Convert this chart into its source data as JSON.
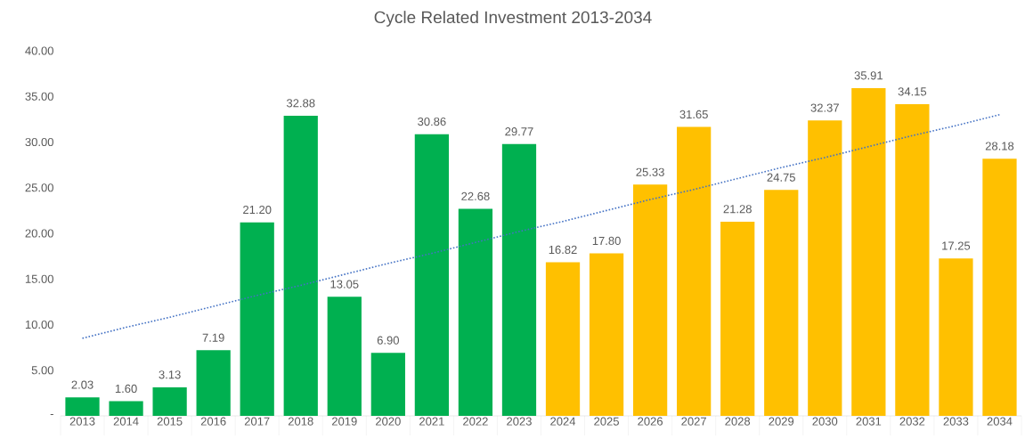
{
  "chart_data": {
    "type": "bar",
    "title": "Cycle Related Investment 2013-2034",
    "categories": [
      "2013",
      "2014",
      "2015",
      "2016",
      "2017",
      "2018",
      "2019",
      "2020",
      "2021",
      "2022",
      "2023",
      "2024",
      "2025",
      "2026",
      "2027",
      "2028",
      "2029",
      "2030",
      "2031",
      "2032",
      "2033",
      "2034"
    ],
    "ylim": [
      0,
      40
    ],
    "yticks": [
      {
        "value": 0,
        "label": "-"
      },
      {
        "value": 5,
        "label": "5.00"
      },
      {
        "value": 10,
        "label": "10.00"
      },
      {
        "value": 15,
        "label": "15.00"
      },
      {
        "value": 20,
        "label": "20.00"
      },
      {
        "value": 25,
        "label": "25.00"
      },
      {
        "value": 30,
        "label": "30.00"
      },
      {
        "value": 35,
        "label": "35.00"
      },
      {
        "value": 40,
        "label": "40.00"
      }
    ],
    "grid": false,
    "series": [
      {
        "values": [
          2.03,
          1.6,
          3.13,
          7.19,
          21.2,
          32.88,
          13.05,
          6.9,
          30.86,
          22.68,
          29.77,
          16.82,
          17.8,
          25.33,
          31.65,
          21.28,
          24.75,
          32.37,
          35.91,
          34.15,
          17.25,
          28.18
        ],
        "value_labels": [
          "2.03",
          "1.60",
          "3.13",
          "7.19",
          "21.20",
          "32.88",
          "13.05",
          "6.90",
          "30.86",
          "22.68",
          "29.77",
          "16.82",
          "17.80",
          "25.33",
          "31.65",
          "21.28",
          "24.75",
          "32.37",
          "35.91",
          "34.15",
          "17.25",
          "28.18"
        ],
        "colors": [
          "#00b050",
          "#00b050",
          "#00b050",
          "#00b050",
          "#00b050",
          "#00b050",
          "#00b050",
          "#00b050",
          "#00b050",
          "#00b050",
          "#00b050",
          "#ffc000",
          "#ffc000",
          "#ffc000",
          "#ffc000",
          "#ffc000",
          "#ffc000",
          "#ffc000",
          "#ffc000",
          "#ffc000",
          "#ffc000",
          "#ffc000"
        ]
      },
      {
        "type": "line",
        "color": "#4472c4",
        "line_style": "dotted",
        "marker": "none",
        "values": [
          8.5,
          9.7,
          10.8,
          12.0,
          13.2,
          14.3,
          15.5,
          16.7,
          17.8,
          19.0,
          20.2,
          21.3,
          22.5,
          23.7,
          24.8,
          26.0,
          27.2,
          28.3,
          29.5,
          30.7,
          31.8,
          33.0
        ]
      }
    ]
  }
}
